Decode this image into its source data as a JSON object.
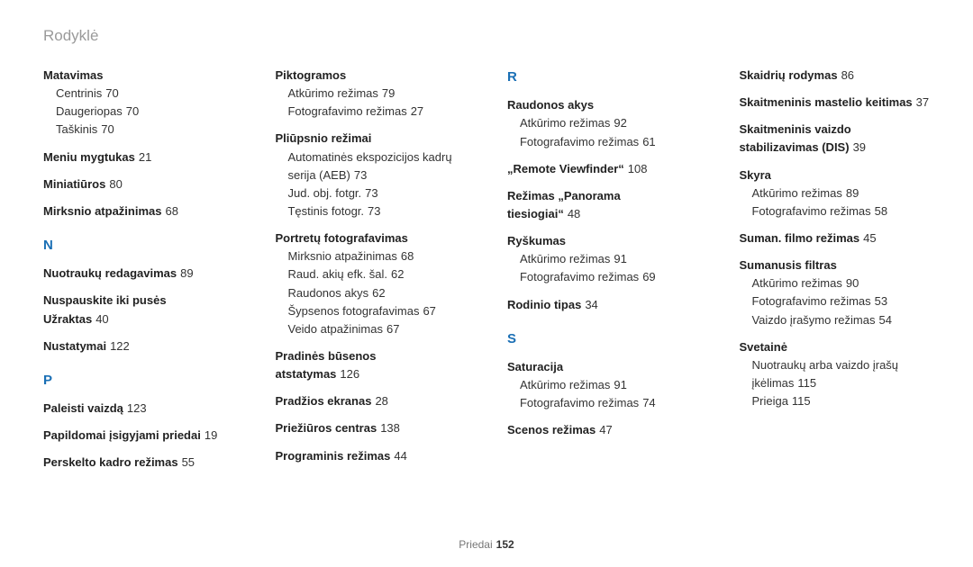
{
  "breadcrumb": "Rodyklė",
  "footer": {
    "label": "Priedai",
    "page": "152"
  },
  "letters": {
    "N": "N",
    "P": "P",
    "R": "R",
    "S": "S"
  },
  "col1": {
    "matavimas": {
      "head": "Matavimas",
      "subs": [
        {
          "t": "Centrinis",
          "p": "70"
        },
        {
          "t": "Daugeriopas",
          "p": "70"
        },
        {
          "t": "Taškinis",
          "p": "70"
        }
      ]
    },
    "meniu": {
      "head": "Meniu mygtukas",
      "p": "21"
    },
    "miniaturos": {
      "head": "Miniatiūros",
      "p": "80"
    },
    "mirksnio": {
      "head": "Mirksnio atpažinimas",
      "p": "68"
    },
    "nuotrauku": {
      "head": "Nuotraukų redagavimas",
      "p": "89"
    },
    "nuspauskite": {
      "head": "Nuspauskite iki pusės Užraktas",
      "p": "40"
    },
    "nustatymai": {
      "head": "Nustatymai",
      "p": "122"
    },
    "paleisti": {
      "head": "Paleisti vaizdą",
      "p": "123"
    },
    "papildomai": {
      "head": "Papildomai įsigyjami priedai",
      "p": "19"
    },
    "perskelto": {
      "head": "Perskelto kadro režimas",
      "p": "55"
    }
  },
  "col2": {
    "piktogramos": {
      "head": "Piktogramos",
      "subs": [
        {
          "t": "Atkūrimo režimas",
          "p": "79"
        },
        {
          "t": "Fotografavimo režimas",
          "p": "27"
        }
      ]
    },
    "pliupsnio": {
      "head": "Pliūpsnio režimai",
      "subs": [
        {
          "t": "Automatinės ekspozicijos kadrų serija (AEB)",
          "p": "73"
        },
        {
          "t": "Jud. obj. fotgr.",
          "p": "73"
        },
        {
          "t": "Tęstinis fotogr.",
          "p": "73"
        }
      ]
    },
    "portretu": {
      "head": "Portretų fotografavimas",
      "subs": [
        {
          "t": "Mirksnio atpažinimas",
          "p": "68"
        },
        {
          "t": "Raud. akių efk. šal.",
          "p": "62"
        },
        {
          "t": "Raudonos akys",
          "p": "62"
        },
        {
          "t": "Šypsenos fotografavimas",
          "p": "67"
        },
        {
          "t": "Veido atpažinimas",
          "p": "67"
        }
      ]
    },
    "pradines": {
      "head": "Pradinės būsenos atstatymas",
      "p": "126"
    },
    "pradzios": {
      "head": "Pradžios ekranas",
      "p": "28"
    },
    "prieziuros": {
      "head": "Priežiūros centras",
      "p": "138"
    },
    "programinis": {
      "head": "Programinis režimas",
      "p": "44"
    }
  },
  "col3": {
    "raudonos": {
      "head": "Raudonos akys",
      "subs": [
        {
          "t": "Atkūrimo režimas",
          "p": "92"
        },
        {
          "t": "Fotografavimo režimas",
          "p": "61"
        }
      ]
    },
    "remote": {
      "head": "„Remote Viewfinder“",
      "p": "108"
    },
    "panorama": {
      "head": "Režimas „Panorama tiesiogiai“",
      "p": "48"
    },
    "ryskumas": {
      "head": "Ryškumas",
      "subs": [
        {
          "t": "Atkūrimo režimas",
          "p": "91"
        },
        {
          "t": "Fotografavimo režimas",
          "p": "69"
        }
      ]
    },
    "rodinio": {
      "head": "Rodinio tipas",
      "p": "34"
    },
    "saturacija": {
      "head": "Saturacija",
      "subs": [
        {
          "t": "Atkūrimo režimas",
          "p": "91"
        },
        {
          "t": "Fotografavimo režimas",
          "p": "74"
        }
      ]
    },
    "scenos": {
      "head": "Scenos režimas",
      "p": "47"
    }
  },
  "col4": {
    "skaidriu": {
      "head": "Skaidrių rodymas",
      "p": "86"
    },
    "mastelio": {
      "head": "Skaitmeninis mastelio keitimas",
      "p": "37"
    },
    "stabilizavimas": {
      "head": "Skaitmeninis vaizdo stabilizavimas (DIS)",
      "p": "39"
    },
    "skyra": {
      "head": "Skyra",
      "subs": [
        {
          "t": "Atkūrimo režimas",
          "p": "89"
        },
        {
          "t": "Fotografavimo režimas",
          "p": "58"
        }
      ]
    },
    "suman": {
      "head": "Suman. filmo režimas",
      "p": "45"
    },
    "sumanusis": {
      "head": "Sumanusis filtras",
      "subs": [
        {
          "t": "Atkūrimo režimas",
          "p": "90"
        },
        {
          "t": "Fotografavimo režimas",
          "p": "53"
        },
        {
          "t": "Vaizdo įrašymo režimas",
          "p": "54"
        }
      ]
    },
    "svetaine": {
      "head": "Svetainė",
      "subs": [
        {
          "t": "Nuotraukų arba vaizdo įrašų įkėlimas",
          "p": "115"
        },
        {
          "t": "Prieiga",
          "p": "115"
        }
      ]
    }
  }
}
